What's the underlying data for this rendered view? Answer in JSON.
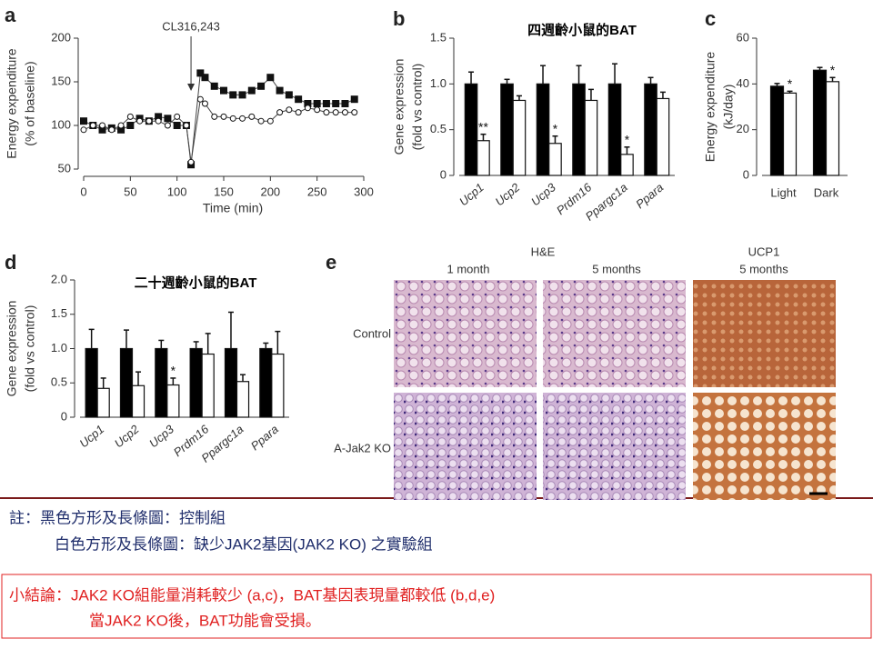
{
  "chart_data": [
    {
      "type": "line",
      "letter": "a",
      "ylabel": [
        "Energy expenditure",
        "(% of baseline)"
      ],
      "xlabel": "Time (min)",
      "annotation": {
        "text": "CL316,243",
        "x": 115
      },
      "x": [
        0,
        10,
        20,
        30,
        40,
        50,
        60,
        70,
        80,
        90,
        100,
        110,
        115,
        125,
        130,
        140,
        150,
        160,
        170,
        180,
        190,
        200,
        210,
        220,
        230,
        240,
        250,
        260,
        270,
        280,
        290
      ],
      "series": [
        {
          "color": "#111111",
          "values": [
            105,
            100,
            95,
            97,
            95,
            100,
            108,
            105,
            110,
            108,
            100,
            100,
            55,
            160,
            155,
            145,
            140,
            135,
            135,
            140,
            145,
            155,
            140,
            135,
            130,
            125,
            125,
            125,
            125,
            125,
            130
          ]
        },
        {
          "color": "#ffffff",
          "values": [
            95,
            100,
            100,
            95,
            100,
            110,
            105,
            105,
            105,
            100,
            110,
            100,
            58,
            130,
            125,
            110,
            110,
            108,
            108,
            110,
            105,
            105,
            115,
            118,
            115,
            120,
            118,
            115,
            115,
            115,
            115
          ]
        }
      ],
      "xlim": [
        0,
        300
      ],
      "xticks": [
        0,
        50,
        100,
        150,
        200,
        250,
        300
      ],
      "ylim": [
        50,
        200
      ],
      "yticks": [
        50,
        100,
        150,
        200
      ]
    },
    {
      "type": "bar",
      "letter": "b",
      "title": "四週齡小鼠的BAT",
      "ylabel": [
        "Gene expression",
        "(fold vs control)"
      ],
      "categories": [
        "Ucp1",
        "Ucp2",
        "Ucp3",
        "Prdm16",
        "Ppargc1a",
        "Ppara"
      ],
      "series": [
        {
          "color": "#000000",
          "values": [
            1.0,
            1.0,
            1.0,
            1.0,
            1.0,
            1.0
          ],
          "errors": [
            0.13,
            0.05,
            0.2,
            0.2,
            0.22,
            0.07
          ]
        },
        {
          "color": "#ffffff",
          "values": [
            0.38,
            0.82,
            0.35,
            0.82,
            0.23,
            0.84
          ],
          "errors": [
            0.07,
            0.05,
            0.08,
            0.12,
            0.08,
            0.07
          ],
          "labels": [
            "**",
            null,
            "*",
            null,
            "*",
            null
          ]
        }
      ],
      "ylim": [
        0,
        1.5
      ],
      "yticks": [
        0,
        0.5,
        {
          "value": 1,
          "label": "1.0"
        },
        1.5
      ]
    },
    {
      "type": "bar",
      "letter": "c",
      "ylabel": [
        "Energy expenditure",
        "(kJ/day)"
      ],
      "categories": [
        "Light",
        "Dark"
      ],
      "series": [
        {
          "color": "#000000",
          "values": [
            39,
            46
          ],
          "errors": [
            1.2,
            1.2
          ]
        },
        {
          "color": "#ffffff",
          "values": [
            36,
            41
          ],
          "errors": [
            0.8,
            1.8
          ],
          "labels": [
            "*",
            "*"
          ]
        }
      ],
      "ylim": [
        0,
        60
      ],
      "yticks": [
        0,
        20,
        40,
        60
      ]
    },
    {
      "type": "bar",
      "letter": "d",
      "title": "二十週齡小鼠的BAT",
      "ylabel": [
        "Gene expression",
        "(fold vs control)"
      ],
      "categories": [
        "Ucp1",
        "Ucp2",
        "Ucp3",
        "Prdm16",
        "Ppargc1a",
        "Ppara"
      ],
      "series": [
        {
          "color": "#000000",
          "values": [
            1.0,
            1.0,
            1.0,
            1.0,
            1.0,
            1.0
          ],
          "errors": [
            0.28,
            0.27,
            0.12,
            0.1,
            0.53,
            0.08
          ]
        },
        {
          "color": "#ffffff",
          "values": [
            0.42,
            0.46,
            0.47,
            0.92,
            0.52,
            0.92
          ],
          "errors": [
            0.15,
            0.2,
            0.1,
            0.3,
            0.1,
            0.33
          ],
          "labels": [
            null,
            null,
            "*",
            null,
            null,
            null
          ]
        }
      ],
      "ylim": [
        0,
        2
      ],
      "yticks": [
        0,
        0.5,
        {
          "value": 1,
          "label": "1.0"
        },
        1.5,
        {
          "value": 2,
          "label": "2.0"
        }
      ]
    }
  ],
  "panel_e": {
    "letter": "e",
    "groups": [
      "H&E",
      "UCP1"
    ],
    "columns": [
      "1 month",
      "5 months",
      "5 months"
    ],
    "rows": [
      "Control",
      "A-Jak2 KO"
    ]
  },
  "notes": [
    "註：黑色方形及長條圖：控制組",
    "白色方形及長條圖：缺少JAK2基因(JAK2 KO) 之實驗組"
  ],
  "conclusion": [
    "小結論：JAK2 KO組能量消耗較少 (a,c)，BAT基因表現量都較低 (b,d,e)",
    "當JAK2 KO後，BAT功能會受損。"
  ]
}
